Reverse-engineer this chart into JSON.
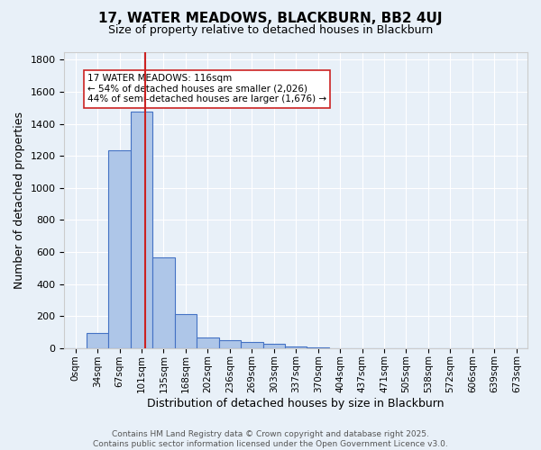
{
  "title": "17, WATER MEADOWS, BLACKBURN, BB2 4UJ",
  "subtitle": "Size of property relative to detached houses in Blackburn",
  "xlabel": "Distribution of detached houses by size in Blackburn",
  "ylabel": "Number of detached properties",
  "bin_labels": [
    "0sqm",
    "34sqm",
    "67sqm",
    "101sqm",
    "135sqm",
    "168sqm",
    "202sqm",
    "236sqm",
    "269sqm",
    "303sqm",
    "337sqm",
    "370sqm",
    "404sqm",
    "437sqm",
    "471sqm",
    "505sqm",
    "538sqm",
    "572sqm",
    "606sqm",
    "639sqm",
    "673sqm"
  ],
  "bin_values": [
    0,
    93,
    1232,
    1476,
    566,
    211,
    63,
    47,
    36,
    25,
    10,
    5,
    1,
    0,
    0,
    0,
    0,
    0,
    0,
    0,
    0
  ],
  "bar_color": "#aec6e8",
  "bar_edge_color": "#4472c4",
  "bg_color": "#e8f0f8",
  "grid_color": "#ffffff",
  "vline_x": 3.18,
  "vline_color": "#cc2222",
  "annotation_text": "17 WATER MEADOWS: 116sqm\n← 54% of detached houses are smaller (2,026)\n44% of semi-detached houses are larger (1,676) →",
  "annotation_box_color": "#ffffff",
  "annotation_box_edge": "#cc2222",
  "ylim": [
    0,
    1850
  ],
  "yticks": [
    0,
    200,
    400,
    600,
    800,
    1000,
    1200,
    1400,
    1600,
    1800
  ],
  "footer_line1": "Contains HM Land Registry data © Crown copyright and database right 2025.",
  "footer_line2": "Contains public sector information licensed under the Open Government Licence v3.0."
}
